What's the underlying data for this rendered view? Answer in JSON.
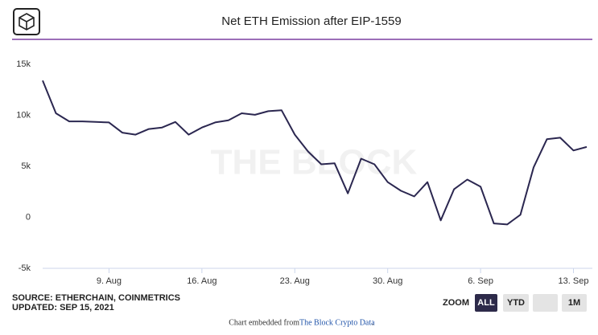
{
  "chart_data": {
    "type": "line",
    "title": "Net ETH Emission after EIP-1559",
    "watermark": "THE BLOCK",
    "source": "SOURCE: ETHERCHAIN, COINMETRICS",
    "updated": "UPDATED: SEP 15, 2021",
    "zoom": {
      "label": "ZOOM",
      "buttons": [
        "ALL",
        "YTD",
        "1M"
      ],
      "active": "ALL"
    },
    "footer": {
      "text": "Chart embedded from ",
      "link": "The Block Crypto Data",
      "end": "."
    },
    "x": [
      "4. Aug",
      "5. Aug",
      "6. Aug",
      "7. Aug",
      "8. Aug",
      "9. Aug",
      "10. Aug",
      "11. Aug",
      "12. Aug",
      "13. Aug",
      "14. Aug",
      "15. Aug",
      "16. Aug",
      "17. Aug",
      "18. Aug",
      "19. Aug",
      "20. Aug",
      "21. Aug",
      "22. Aug",
      "23. Aug",
      "24. Aug",
      "25. Aug",
      "26. Aug",
      "27. Aug",
      "28. Aug",
      "29. Aug",
      "30. Aug",
      "31. Aug",
      "1. Sep",
      "2. Sep",
      "3. Sep",
      "4. Sep",
      "5. Sep",
      "6. Sep",
      "7. Sep",
      "8. Sep",
      "9. Sep",
      "10. Sep",
      "11. Sep",
      "12. Sep",
      "13. Sep",
      "14. Sep"
    ],
    "xticks": [
      "9. Aug",
      "16. Aug",
      "23. Aug",
      "30. Aug",
      "6. Sep",
      "13. Sep"
    ],
    "series": [
      {
        "name": "Net ETH Emission",
        "color": "#2b2750",
        "values": [
          13400,
          10200,
          9400,
          9400,
          9350,
          9300,
          8300,
          8100,
          8650,
          8800,
          9350,
          8100,
          8800,
          9300,
          9500,
          10200,
          10050,
          10400,
          10500,
          8100,
          6450,
          5200,
          5300,
          2350,
          5750,
          5200,
          3450,
          2600,
          2050,
          3450,
          -300,
          2750,
          3700,
          3000,
          -600,
          -700,
          250,
          4900,
          7650,
          7800,
          6550,
          6900
        ]
      }
    ],
    "ylim": [
      -5000,
      15000
    ],
    "yticks": [
      {
        "value": -5000,
        "label": "-5k"
      },
      0,
      {
        "value": 5000,
        "label": "5k"
      },
      {
        "value": 10000,
        "label": "10k"
      },
      {
        "value": 15000,
        "label": "15k"
      }
    ],
    "grid": false
  }
}
